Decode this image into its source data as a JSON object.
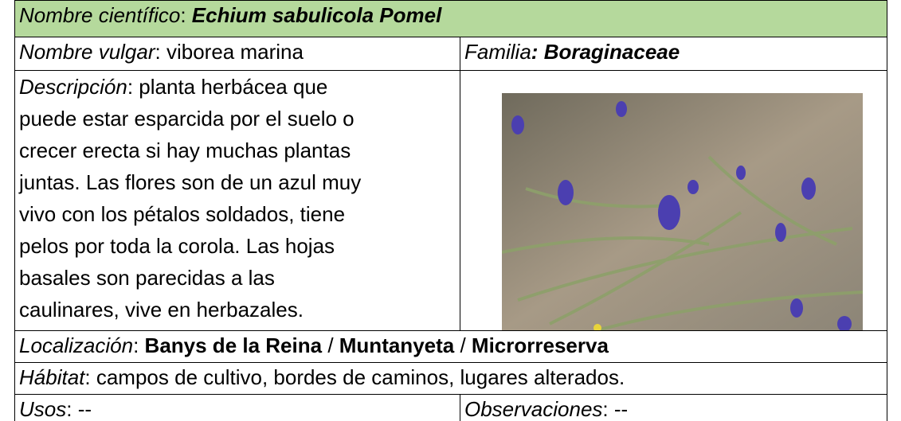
{
  "scientific_name": {
    "label": "Nombre científico",
    "separator": ": ",
    "value": "Echium sabulicola Pomel"
  },
  "common_name": {
    "label": "Nombre vulgar",
    "separator": ": ",
    "value": "viborea marina"
  },
  "family": {
    "label": "Familia",
    "separator": ": ",
    "value": "Boraginaceae"
  },
  "description": {
    "label": "Descripción",
    "separator": ": ",
    "lines": [
      "planta herbácea que",
      "puede estar esparcida por el suelo o",
      "crecer erecta si hay muchas plantas",
      "juntas. Las flores son de un azul muy",
      "vivo con los pétalos soldados, tiene",
      "pelos por toda la corola. Las hojas",
      "basales son parecidas a las",
      "caulinares, vive en herbazales."
    ]
  },
  "location": {
    "label": "Localización",
    "separator": ": ",
    "places": [
      "Banys de la Reina",
      "Muntanyeta",
      "Microrreserva"
    ],
    "place_separator": " / "
  },
  "habitat": {
    "label": "Hábitat",
    "separator": ": ",
    "value": "campos de cultivo, bordes de caminos, lugares alterados."
  },
  "uses": {
    "label": "Usos",
    "separator": ": ",
    "value": "--"
  },
  "observations": {
    "label": "Observaciones",
    "separator": ": ",
    "value": "--"
  }
}
